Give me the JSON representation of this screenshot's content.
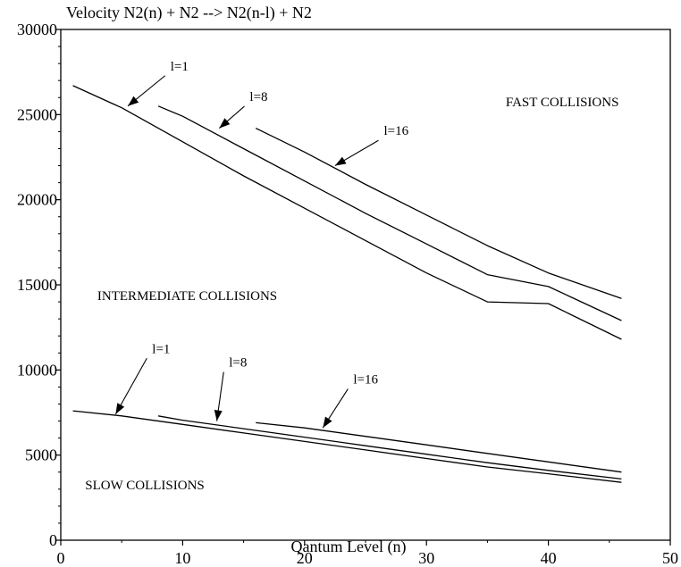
{
  "chart_data": {
    "type": "line",
    "title": "Velocity  N2(n) + N2 --> N2(n-l) + N2",
    "xlabel": "Qantum Level (n)",
    "ylabel": "",
    "xlim": [
      0,
      50
    ],
    "ylim": [
      0,
      30000
    ],
    "xticks": [
      "0",
      "10",
      "20",
      "30",
      "40",
      "50"
    ],
    "yticks": [
      "0",
      "5000",
      "10000",
      "15000",
      "20000",
      "25000",
      "30000"
    ],
    "grid": false,
    "series": [
      {
        "group": "fast",
        "label": "l=1",
        "x": [
          1,
          5,
          10,
          15,
          20,
          25,
          30,
          35,
          40,
          46
        ],
        "y": [
          26700,
          25400,
          23400,
          21400,
          19500,
          17600,
          15700,
          14000,
          13900,
          11800
        ]
      },
      {
        "group": "fast",
        "label": "l=8",
        "x": [
          8,
          10,
          15,
          20,
          25,
          30,
          35,
          40,
          46
        ],
        "y": [
          25500,
          24900,
          23000,
          21100,
          19200,
          17400,
          15600,
          14900,
          12900
        ]
      },
      {
        "group": "fast",
        "label": "l=16",
        "x": [
          16,
          20,
          25,
          30,
          35,
          40,
          46
        ],
        "y": [
          24200,
          22800,
          20900,
          19100,
          17300,
          15700,
          14200
        ]
      },
      {
        "group": "slow",
        "label": "l=1",
        "x": [
          1,
          5,
          10,
          15,
          20,
          25,
          30,
          35,
          40,
          46
        ],
        "y": [
          7600,
          7300,
          6800,
          6300,
          5800,
          5300,
          4800,
          4300,
          3900,
          3400
        ]
      },
      {
        "group": "slow",
        "label": "l=8",
        "x": [
          8,
          10,
          15,
          20,
          25,
          30,
          35,
          40,
          46
        ],
        "y": [
          7300,
          7050,
          6550,
          6050,
          5550,
          5050,
          4550,
          4100,
          3600
        ]
      },
      {
        "group": "slow",
        "label": "l=16",
        "x": [
          16,
          20,
          25,
          30,
          35,
          40,
          46
        ],
        "y": [
          6900,
          6600,
          6100,
          5600,
          5100,
          4600,
          4000
        ]
      }
    ],
    "annotations": [
      {
        "text": "FAST COLLISIONS",
        "x": 36.5,
        "y": 25500
      },
      {
        "text": "INTERMEDIATE COLLISIONS",
        "x": 3,
        "y": 14100
      },
      {
        "text": "SLOW COLLISIONS",
        "x": 2,
        "y": 3000
      },
      {
        "text": "l=1",
        "x": 9,
        "y": 27600,
        "arrow_to": [
          5.5,
          25500
        ]
      },
      {
        "text": "l=8",
        "x": 15.5,
        "y": 25800,
        "arrow_to": [
          13,
          24200
        ]
      },
      {
        "text": "l=16",
        "x": 26.5,
        "y": 23800,
        "arrow_to": [
          22.5,
          22000
        ]
      },
      {
        "text": "l=1",
        "x": 7.5,
        "y": 11000,
        "arrow_to": [
          4.5,
          7400
        ]
      },
      {
        "text": "l=8",
        "x": 13.8,
        "y": 10200,
        "arrow_to": [
          12.8,
          7000
        ]
      },
      {
        "text": "l=16",
        "x": 24,
        "y": 9200,
        "arrow_to": [
          21.5,
          6600
        ]
      }
    ]
  }
}
